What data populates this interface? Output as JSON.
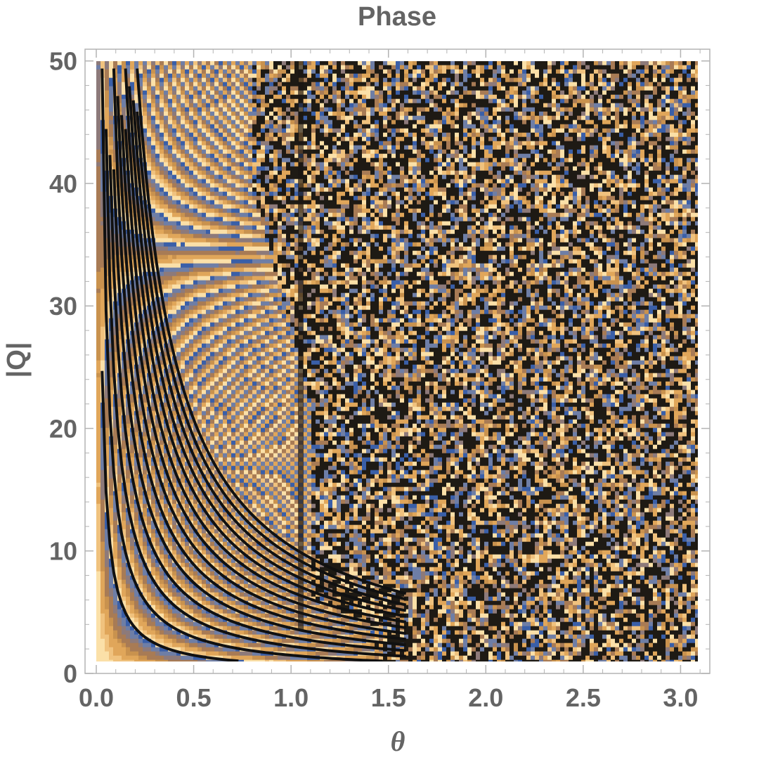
{
  "chart_data": {
    "type": "heatmap",
    "title": "Phase",
    "xlabel": "θ",
    "ylabel": "|Q|",
    "xlim": [
      0,
      3.15
    ],
    "ylim": [
      0,
      50.5
    ],
    "data_x_range": [
      0,
      3.14
    ],
    "data_y_range": [
      1,
      50
    ],
    "x_ticks": [
      {
        "value": 0.0,
        "label": "0.0"
      },
      {
        "value": 0.5,
        "label": "0.5"
      },
      {
        "value": 1.0,
        "label": "1.0"
      },
      {
        "value": 1.5,
        "label": "1.5"
      },
      {
        "value": 2.0,
        "label": "2.0"
      },
      {
        "value": 2.5,
        "label": "2.5"
      },
      {
        "value": 3.0,
        "label": "3.0"
      }
    ],
    "y_ticks": [
      {
        "value": 0,
        "label": "0"
      },
      {
        "value": 10,
        "label": "10"
      },
      {
        "value": 20,
        "label": "20"
      },
      {
        "value": 30,
        "label": "30"
      },
      {
        "value": 40,
        "label": "40"
      },
      {
        "value": 50,
        "label": "50"
      }
    ],
    "contour_bands": 20,
    "palette": [
      "#3a5fa8",
      "#6e7ea6",
      "#8d7a7a",
      "#a87b55",
      "#c9924e",
      "#e0a65a",
      "#f0c27e",
      "#fbe0a8"
    ],
    "frame_color": "#b3b3b3",
    "grid": false,
    "legend": "none"
  }
}
